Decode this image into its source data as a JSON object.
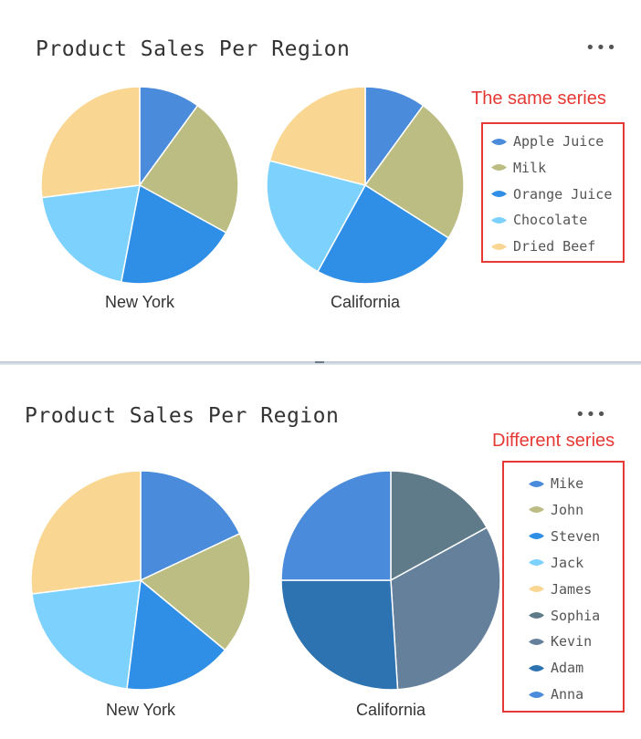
{
  "panels": [
    {
      "title": "Product Sales Per Region",
      "more_menu": "•••",
      "annotation": "The same series"
    },
    {
      "title": "Product Sales Per Region",
      "more_menu": "•••",
      "annotation": "Different series"
    }
  ],
  "chart_data": [
    {
      "type": "pie",
      "title": "Product Sales Per Region",
      "legend_position": "right",
      "pies": [
        {
          "label": "New York",
          "slices": [
            {
              "name": "Apple Juice",
              "value": 10
            },
            {
              "name": "Milk",
              "value": 23
            },
            {
              "name": "Orange Juice",
              "value": 20
            },
            {
              "name": "Chocolate",
              "value": 20
            },
            {
              "name": "Dried Beef",
              "value": 27
            }
          ]
        },
        {
          "label": "California",
          "slices": [
            {
              "name": "Apple Juice",
              "value": 10
            },
            {
              "name": "Milk",
              "value": 24
            },
            {
              "name": "Orange Juice",
              "value": 24
            },
            {
              "name": "Chocolate",
              "value": 21
            },
            {
              "name": "Dried Beef",
              "value": 21
            }
          ]
        }
      ],
      "legend": [
        {
          "name": "Apple Juice",
          "color": "#4a8cdb"
        },
        {
          "name": "Milk",
          "color": "#bbbd82"
        },
        {
          "name": "Orange Juice",
          "color": "#2f8fe6"
        },
        {
          "name": "Chocolate",
          "color": "#7dd1fd"
        },
        {
          "name": "Dried Beef",
          "color": "#f9d792"
        }
      ]
    },
    {
      "type": "pie",
      "title": "Product Sales Per Region",
      "legend_position": "right",
      "pies": [
        {
          "label": "New York",
          "slices": [
            {
              "name": "Mike",
              "value": 18
            },
            {
              "name": "John",
              "value": 18
            },
            {
              "name": "Steven",
              "value": 16
            },
            {
              "name": "Jack",
              "value": 21
            },
            {
              "name": "James",
              "value": 27
            }
          ]
        },
        {
          "label": "California",
          "slices": [
            {
              "name": "Sophia",
              "value": 17
            },
            {
              "name": "Kevin",
              "value": 32
            },
            {
              "name": "Adam",
              "value": 26
            },
            {
              "name": "Anna",
              "value": 25
            }
          ]
        }
      ],
      "legend": [
        {
          "name": "Mike",
          "color": "#4a8cdb"
        },
        {
          "name": "John",
          "color": "#bbbd82"
        },
        {
          "name": "Steven",
          "color": "#2f8fe6"
        },
        {
          "name": "Jack",
          "color": "#7dd1fd"
        },
        {
          "name": "James",
          "color": "#f9d792"
        },
        {
          "name": "Sophia",
          "color": "#5f7b89"
        },
        {
          "name": "Kevin",
          "color": "#65809b"
        },
        {
          "name": "Adam",
          "color": "#2d72b1"
        },
        {
          "name": "Anna",
          "color": "#4a8cdb"
        }
      ]
    }
  ]
}
